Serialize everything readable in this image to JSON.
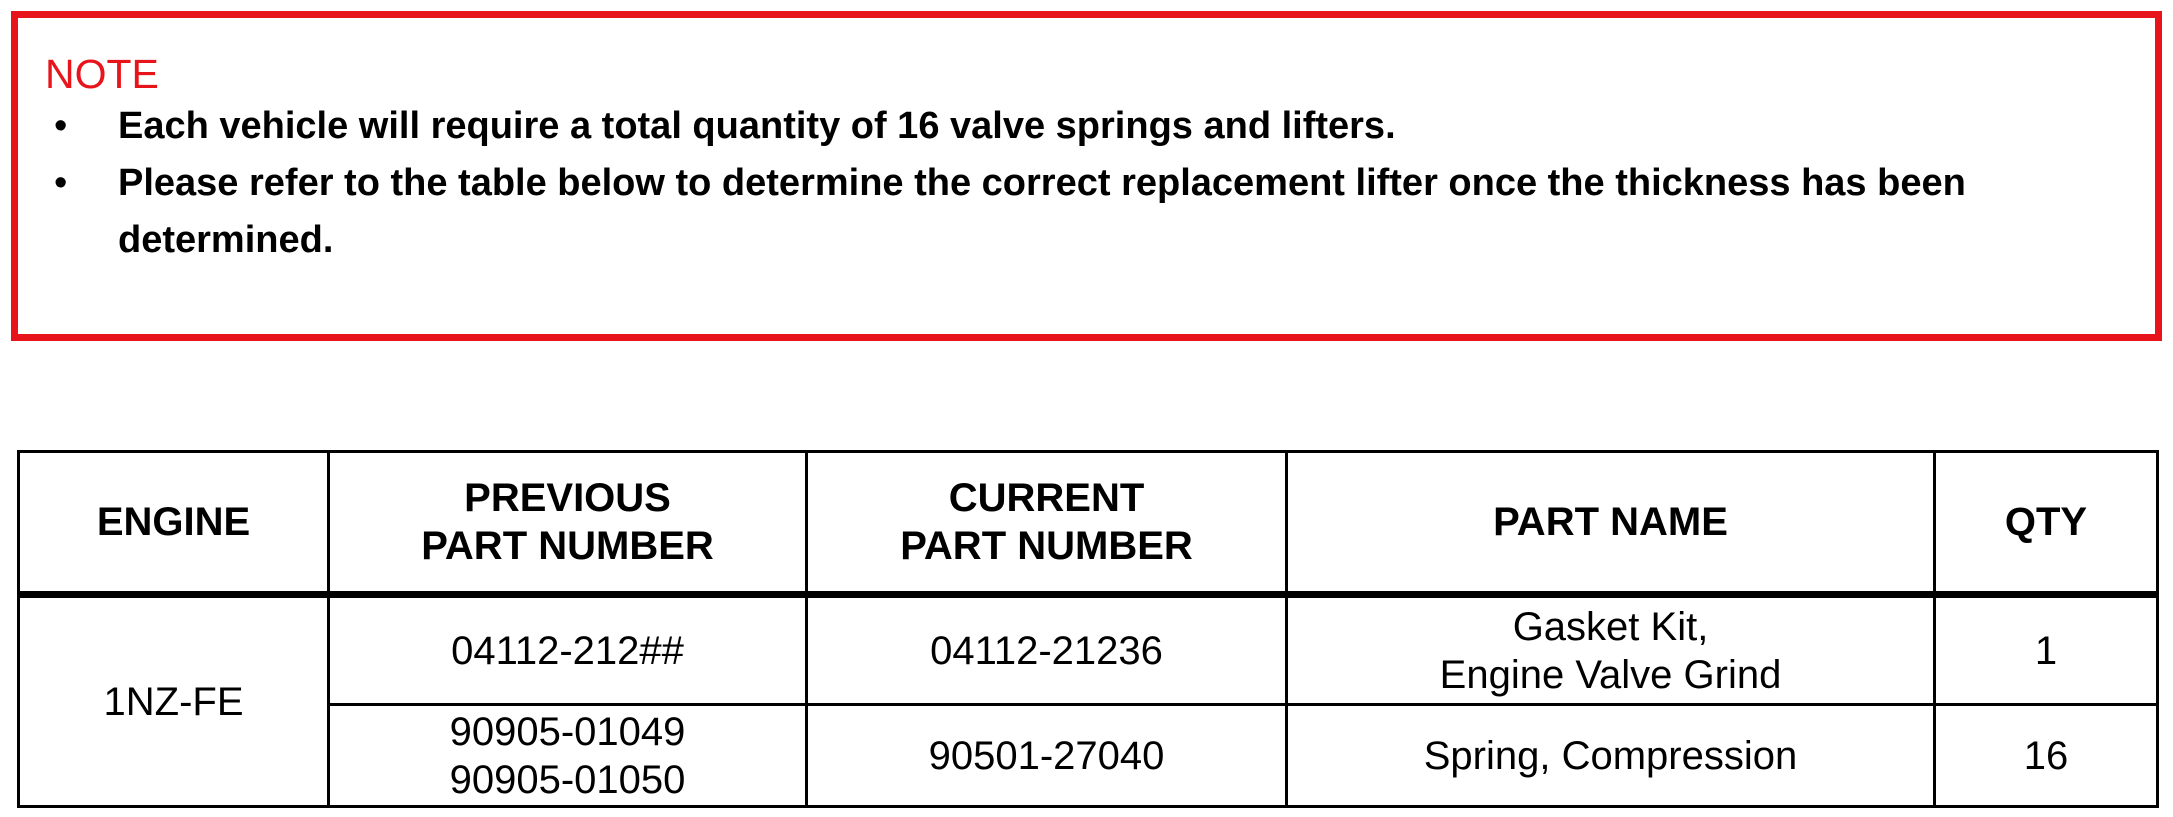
{
  "note": {
    "title": "NOTE",
    "bullets": [
      "Each vehicle will require a total quantity of 16 valve springs and lifters.",
      "Please refer to the table below to determine the correct replacement lifter once the thickness has been determined."
    ],
    "bullet_symbol": "•",
    "accent_color": "#e8141b"
  },
  "table": {
    "headers": [
      [
        "ENGINE"
      ],
      [
        "PREVIOUS",
        "PART NUMBER"
      ],
      [
        "CURRENT",
        "PART NUMBER"
      ],
      [
        "PART NAME"
      ],
      [
        "QTY"
      ]
    ],
    "engine": "1NZ-FE",
    "rows": [
      {
        "previous": [
          "04112-212##"
        ],
        "current": "04112-21236",
        "name": [
          "Gasket Kit,",
          "Engine Valve Grind"
        ],
        "qty": "1"
      },
      {
        "previous": [
          "90905-01049",
          "90905-01050"
        ],
        "current": "90501-27040",
        "name": [
          "Spring, Compression"
        ],
        "qty": "16"
      }
    ]
  }
}
